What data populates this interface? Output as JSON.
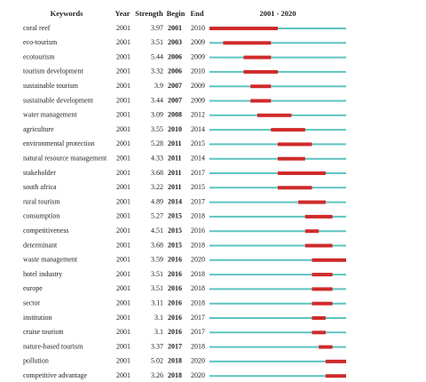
{
  "header": {
    "keywords": "Keywords",
    "year": "Year",
    "strength": "Strength",
    "begin": "Begin",
    "end": "End"
  },
  "timeline": {
    "start": 2001,
    "end": 2020,
    "label": "2001 - 2020"
  },
  "rows": [
    {
      "keyword": "coral reef",
      "year": 2001,
      "strength": 3.97,
      "begin": 2001,
      "end": 2010
    },
    {
      "keyword": "eco-tourism",
      "year": 2001,
      "strength": 3.51,
      "begin": 2003,
      "end": 2009
    },
    {
      "keyword": "ecotourism",
      "year": 2001,
      "strength": 5.44,
      "begin": 2006,
      "end": 2009
    },
    {
      "keyword": "tourism development",
      "year": 2001,
      "strength": 3.32,
      "begin": 2006,
      "end": 2010
    },
    {
      "keyword": "sustainable tourism",
      "year": 2001,
      "strength": 3.9,
      "begin": 2007,
      "end": 2009
    },
    {
      "keyword": "sustainable development",
      "year": 2001,
      "strength": 3.44,
      "begin": 2007,
      "end": 2009
    },
    {
      "keyword": "water management",
      "year": 2001,
      "strength": 3.09,
      "begin": 2008,
      "end": 2012
    },
    {
      "keyword": "agriculture",
      "year": 2001,
      "strength": 3.55,
      "begin": 2010,
      "end": 2014
    },
    {
      "keyword": "environmental protection",
      "year": 2001,
      "strength": 5.28,
      "begin": 2011,
      "end": 2015
    },
    {
      "keyword": "natural resource management",
      "year": 2001,
      "strength": 4.33,
      "begin": 2011,
      "end": 2014
    },
    {
      "keyword": "stakeholder",
      "year": 2001,
      "strength": 3.68,
      "begin": 2011,
      "end": 2017
    },
    {
      "keyword": "south africa",
      "year": 2001,
      "strength": 3.22,
      "begin": 2011,
      "end": 2015
    },
    {
      "keyword": "rural tourism",
      "year": 2001,
      "strength": 4.89,
      "begin": 2014,
      "end": 2017
    },
    {
      "keyword": "consumption",
      "year": 2001,
      "strength": 5.27,
      "begin": 2015,
      "end": 2018
    },
    {
      "keyword": "competitiveness",
      "year": 2001,
      "strength": 4.51,
      "begin": 2015,
      "end": 2016
    },
    {
      "keyword": "determinant",
      "year": 2001,
      "strength": 3.68,
      "begin": 2015,
      "end": 2018
    },
    {
      "keyword": "waste management",
      "year": 2001,
      "strength": 3.59,
      "begin": 2016,
      "end": 2020
    },
    {
      "keyword": "hotel industry",
      "year": 2001,
      "strength": 3.51,
      "begin": 2016,
      "end": 2018
    },
    {
      "keyword": "europe",
      "year": 2001,
      "strength": 3.51,
      "begin": 2016,
      "end": 2018
    },
    {
      "keyword": "sector",
      "year": 2001,
      "strength": 3.11,
      "begin": 2016,
      "end": 2018
    },
    {
      "keyword": "institution",
      "year": 2001,
      "strength": 3.1,
      "begin": 2016,
      "end": 2017
    },
    {
      "keyword": "cruise tourism",
      "year": 2001,
      "strength": 3.1,
      "begin": 2016,
      "end": 2017
    },
    {
      "keyword": "nature-based tourism",
      "year": 2001,
      "strength": 3.37,
      "begin": 2017,
      "end": 2018
    },
    {
      "keyword": "pollution",
      "year": 2001,
      "strength": 5.02,
      "begin": 2018,
      "end": 2020
    },
    {
      "keyword": "competitive advantage",
      "year": 2001,
      "strength": 3.26,
      "begin": 2018,
      "end": 2020
    }
  ]
}
